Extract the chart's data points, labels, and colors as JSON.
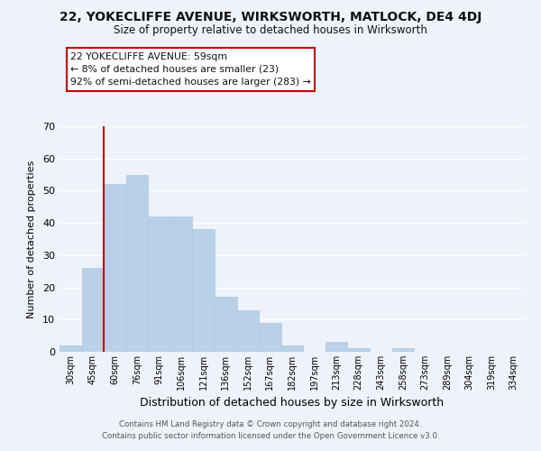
{
  "title": "22, YOKECLIFFE AVENUE, WIRKSWORTH, MATLOCK, DE4 4DJ",
  "subtitle": "Size of property relative to detached houses in Wirksworth",
  "xlabel": "Distribution of detached houses by size in Wirksworth",
  "ylabel": "Number of detached properties",
  "bar_labels": [
    "30sqm",
    "45sqm",
    "60sqm",
    "76sqm",
    "91sqm",
    "106sqm",
    "121sqm",
    "136sqm",
    "152sqm",
    "167sqm",
    "182sqm",
    "197sqm",
    "213sqm",
    "228sqm",
    "243sqm",
    "258sqm",
    "273sqm",
    "289sqm",
    "304sqm",
    "319sqm",
    "334sqm"
  ],
  "bar_values": [
    2,
    26,
    52,
    55,
    42,
    42,
    38,
    17,
    13,
    9,
    2,
    0,
    3,
    1,
    0,
    1,
    0,
    0,
    0,
    0,
    0
  ],
  "bar_color": "#b8d0e8",
  "bar_edge_color": "#b0c8e0",
  "highlight_line_color": "#cc0000",
  "ylim": [
    0,
    70
  ],
  "yticks": [
    0,
    10,
    20,
    30,
    40,
    50,
    60,
    70
  ],
  "annotation_title": "22 YOKECLIFFE AVENUE: 59sqm",
  "annotation_line1": "← 8% of detached houses are smaller (23)",
  "annotation_line2": "92% of semi-detached houses are larger (283) →",
  "annotation_box_color": "#ffffff",
  "annotation_box_edge": "#cc0000",
  "footer1": "Contains HM Land Registry data © Crown copyright and database right 2024.",
  "footer2": "Contains public sector information licensed under the Open Government Licence v3.0.",
  "background_color": "#eef2fa",
  "plot_background": "#eef2fa",
  "grid_color": "#ffffff"
}
